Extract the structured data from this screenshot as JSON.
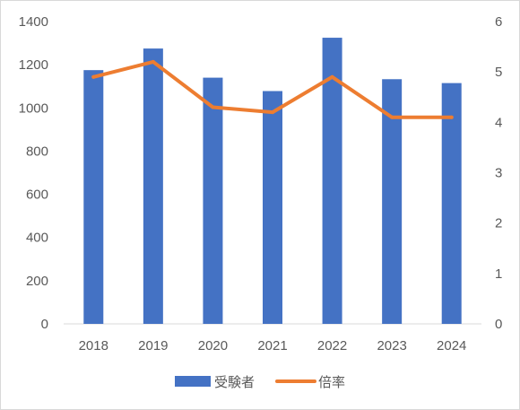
{
  "chart_data": {
    "type": "bar",
    "categories": [
      "2018",
      "2019",
      "2020",
      "2021",
      "2022",
      "2023",
      "2024"
    ],
    "series": [
      {
        "name": "受験者",
        "type": "bar",
        "axis": "left",
        "color": "#4472c4",
        "values": [
          1175,
          1275,
          1140,
          1078,
          1325,
          1133,
          1115
        ]
      },
      {
        "name": "倍率",
        "type": "line",
        "axis": "right",
        "color": "#ed7d31",
        "values": [
          4.9,
          5.2,
          4.3,
          4.2,
          4.9,
          4.1,
          4.1
        ]
      }
    ],
    "y_left": {
      "ylim": [
        0,
        1400
      ],
      "ticks": [
        "0",
        "200",
        "400",
        "600",
        "800",
        "1000",
        "1200",
        "1400"
      ]
    },
    "y_right": {
      "ylim": [
        0,
        6
      ],
      "ticks": [
        "0",
        "1",
        "2",
        "3",
        "4",
        "5",
        "6"
      ]
    },
    "grid": false,
    "legend": "bottom",
    "title": "",
    "xlabel": "",
    "ylabel": ""
  }
}
